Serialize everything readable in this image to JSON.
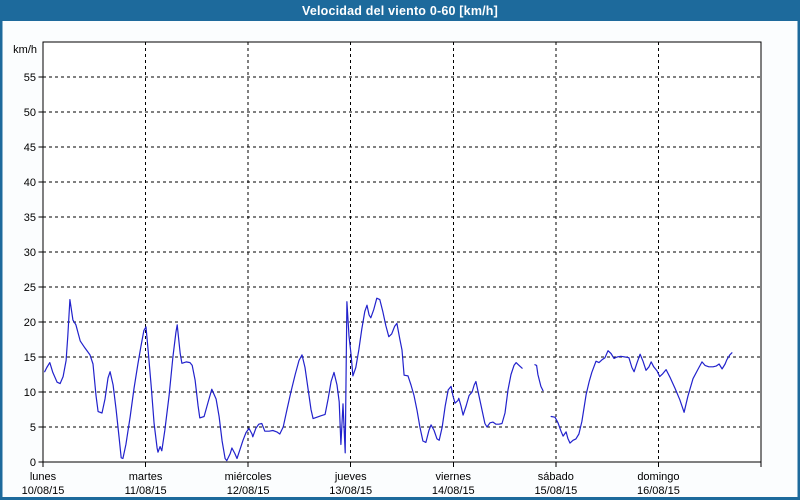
{
  "window": {
    "title": "Velocidad del viento 0-60 [km/h]"
  },
  "colors": {
    "titlebar_bg": "#1d6a9c",
    "titlebar_text": "#ffffff",
    "frame": "#1d6a9c",
    "page_bg": "#fbfdfe",
    "plot_bg": "#ffffff",
    "grid": "#000000",
    "axis": "#000000",
    "label": "#000000",
    "line": "#2222cc"
  },
  "chart_data": {
    "type": "line",
    "title": "Velocidad del viento 0-60 [km/h]",
    "ylabel": "km/h",
    "unit_label": "km/h",
    "ylim": [
      0,
      60
    ],
    "ytick_step": 5,
    "ytick_labels": [
      "0",
      "5",
      "10",
      "15",
      "20",
      "25",
      "30",
      "35",
      "40",
      "45",
      "50",
      "55"
    ],
    "x_range_hours": [
      0,
      168
    ],
    "grid": "dashed",
    "legend": "none",
    "days": [
      {
        "name": "lunes",
        "date": "10/08/15"
      },
      {
        "name": "martes",
        "date": "11/08/15"
      },
      {
        "name": "miércoles",
        "date": "12/08/15"
      },
      {
        "name": "jueves",
        "date": "13/08/15"
      },
      {
        "name": "viernes",
        "date": "14/08/15"
      },
      {
        "name": "sábado",
        "date": "15/08/15"
      },
      {
        "name": "domingo",
        "date": "16/08/15"
      }
    ],
    "series": [
      {
        "name": "velocidad del viento",
        "color": "#2222cc",
        "segments": [
          [
            [
              0.4,
              12.9
            ],
            [
              0.9,
              13.5
            ],
            [
              1.6,
              14.2
            ],
            [
              2.3,
              12.8
            ],
            [
              3.3,
              11.4
            ],
            [
              4.0,
              11.2
            ],
            [
              4.7,
              12.2
            ],
            [
              5.4,
              14.5
            ],
            [
              5.8,
              18.0
            ],
            [
              6.3,
              23.2
            ],
            [
              7.0,
              20.3
            ],
            [
              7.7,
              19.6
            ],
            [
              8.7,
              17.3
            ],
            [
              9.8,
              16.3
            ],
            [
              11.0,
              15.3
            ],
            [
              11.7,
              14.0
            ],
            [
              12.4,
              9.5
            ],
            [
              12.9,
              7.2
            ],
            [
              13.8,
              7.0
            ],
            [
              14.5,
              9.0
            ],
            [
              15.2,
              12.0
            ],
            [
              15.7,
              12.9
            ],
            [
              16.4,
              11.0
            ],
            [
              17.1,
              7.5
            ],
            [
              17.8,
              3.5
            ],
            [
              18.3,
              0.6
            ],
            [
              18.7,
              0.5
            ],
            [
              19.4,
              2.5
            ],
            [
              20.4,
              6.5
            ],
            [
              21.3,
              10.5
            ],
            [
              22.2,
              14.0
            ],
            [
              22.9,
              16.5
            ],
            [
              23.6,
              18.8
            ],
            [
              24.1,
              19.3
            ],
            [
              24.6,
              16.0
            ],
            [
              25.3,
              11.0
            ],
            [
              26.0,
              5.5
            ],
            [
              26.7,
              2.0
            ],
            [
              26.9,
              1.4
            ],
            [
              27.4,
              2.2
            ],
            [
              27.8,
              1.6
            ],
            [
              28.5,
              4.5
            ],
            [
              29.5,
              9.5
            ],
            [
              30.4,
              15.0
            ],
            [
              31.1,
              18.5
            ],
            [
              31.4,
              19.6
            ],
            [
              32.1,
              15.5
            ],
            [
              32.5,
              14.1
            ],
            [
              33.5,
              14.3
            ],
            [
              34.4,
              14.2
            ],
            [
              34.9,
              13.8
            ],
            [
              35.6,
              11.7
            ],
            [
              36.3,
              8.0
            ],
            [
              36.7,
              6.3
            ],
            [
              37.7,
              6.5
            ],
            [
              38.6,
              8.5
            ],
            [
              39.5,
              10.4
            ],
            [
              40.5,
              9.0
            ],
            [
              41.2,
              6.5
            ],
            [
              41.9,
              3.0
            ],
            [
              42.6,
              0.5
            ],
            [
              43.0,
              0.2
            ],
            [
              43.8,
              1.2
            ],
            [
              44.2,
              2.0
            ],
            [
              44.9,
              1.2
            ],
            [
              45.4,
              0.5
            ],
            [
              46.1,
              1.8
            ],
            [
              46.8,
              3.1
            ],
            [
              47.5,
              4.2
            ],
            [
              48.2,
              4.8
            ],
            [
              48.9,
              4.0
            ],
            [
              49.1,
              3.6
            ],
            [
              49.8,
              4.8
            ],
            [
              50.5,
              5.4
            ],
            [
              51.2,
              5.5
            ],
            [
              51.9,
              4.4
            ],
            [
              52.9,
              4.4
            ],
            [
              53.8,
              4.5
            ],
            [
              54.7,
              4.3
            ],
            [
              55.4,
              4.0
            ],
            [
              56.2,
              5.0
            ],
            [
              57.1,
              7.5
            ],
            [
              58.0,
              10.0
            ],
            [
              59.0,
              12.5
            ],
            [
              59.9,
              14.5
            ],
            [
              60.6,
              15.3
            ],
            [
              61.3,
              13.5
            ],
            [
              62.0,
              10.5
            ],
            [
              62.7,
              7.5
            ],
            [
              63.2,
              6.2
            ],
            [
              64.1,
              6.4
            ],
            [
              65.0,
              6.6
            ],
            [
              66.0,
              6.8
            ],
            [
              66.7,
              9.0
            ],
            [
              67.4,
              11.5
            ],
            [
              68.1,
              12.8
            ],
            [
              68.8,
              11.0
            ],
            [
              69.3,
              8.6
            ],
            [
              69.7,
              2.5
            ],
            [
              70.2,
              8.3
            ],
            [
              70.7,
              1.3
            ],
            [
              71.1,
              22.9
            ],
            [
              71.6,
              18.0
            ],
            [
              72.1,
              15.3
            ],
            [
              72.5,
              12.3
            ],
            [
              73.2,
              13.5
            ],
            [
              73.9,
              16.0
            ],
            [
              74.6,
              19.0
            ],
            [
              75.3,
              21.5
            ],
            [
              75.8,
              22.4
            ],
            [
              76.3,
              21.0
            ],
            [
              76.7,
              20.6
            ],
            [
              77.4,
              21.8
            ],
            [
              78.1,
              23.4
            ],
            [
              78.8,
              23.2
            ],
            [
              79.5,
              21.5
            ],
            [
              80.2,
              19.5
            ],
            [
              80.9,
              17.9
            ],
            [
              81.6,
              18.3
            ],
            [
              82.3,
              19.4
            ],
            [
              82.8,
              19.8
            ],
            [
              83.5,
              17.5
            ],
            [
              84.0,
              16.0
            ],
            [
              84.5,
              12.4
            ],
            [
              85.4,
              12.3
            ],
            [
              86.1,
              11.0
            ],
            [
              86.8,
              9.5
            ],
            [
              87.5,
              7.4
            ],
            [
              88.2,
              5.0
            ],
            [
              88.9,
              3.0
            ],
            [
              89.6,
              2.8
            ],
            [
              90.3,
              4.5
            ],
            [
              90.8,
              5.3
            ],
            [
              91.5,
              4.5
            ],
            [
              92.2,
              3.3
            ],
            [
              92.7,
              3.1
            ],
            [
              93.4,
              5.0
            ],
            [
              94.1,
              8.0
            ],
            [
              94.8,
              10.3
            ],
            [
              95.5,
              10.8
            ],
            [
              95.9,
              9.5
            ],
            [
              96.4,
              8.4
            ],
            [
              97.1,
              8.8
            ],
            [
              97.3,
              9.1
            ],
            [
              97.8,
              8.0
            ],
            [
              98.3,
              6.7
            ],
            [
              99.0,
              8.0
            ],
            [
              99.7,
              9.5
            ],
            [
              100.4,
              10.0
            ],
            [
              100.9,
              11.0
            ],
            [
              101.3,
              11.5
            ],
            [
              102.0,
              9.5
            ],
            [
              102.7,
              7.5
            ],
            [
              103.4,
              5.5
            ],
            [
              103.9,
              5.0
            ],
            [
              104.6,
              5.6
            ],
            [
              105.3,
              5.7
            ],
            [
              106.0,
              5.4
            ],
            [
              106.7,
              5.4
            ],
            [
              107.4,
              5.5
            ],
            [
              108.1,
              7.0
            ],
            [
              108.8,
              10.3
            ],
            [
              109.5,
              12.5
            ],
            [
              110.2,
              13.8
            ],
            [
              110.7,
              14.2
            ],
            [
              111.4,
              13.8
            ],
            [
              112.1,
              13.4
            ]
          ],
          [
            [
              115.1,
              13.9
            ],
            [
              115.5,
              13.8
            ],
            [
              115.8,
              12.5
            ],
            [
              116.5,
              10.8
            ],
            [
              117.0,
              10.2
            ]
          ],
          [
            [
              118.9,
              6.5
            ],
            [
              119.8,
              6.4
            ],
            [
              120.5,
              5.6
            ],
            [
              121.2,
              4.4
            ],
            [
              121.7,
              3.7
            ],
            [
              122.4,
              4.3
            ],
            [
              122.8,
              3.4
            ],
            [
              123.3,
              2.7
            ],
            [
              124.0,
              3.1
            ],
            [
              124.7,
              3.3
            ],
            [
              125.4,
              4.0
            ],
            [
              126.1,
              5.8
            ],
            [
              127.1,
              9.7
            ],
            [
              127.8,
              11.5
            ],
            [
              128.4,
              12.8
            ],
            [
              129.4,
              14.4
            ],
            [
              130.1,
              14.2
            ],
            [
              130.8,
              14.6
            ],
            [
              131.5,
              14.9
            ],
            [
              132.2,
              15.9
            ],
            [
              132.9,
              15.5
            ],
            [
              133.6,
              14.8
            ],
            [
              134.3,
              15.0
            ],
            [
              135.2,
              15.1
            ],
            [
              136.2,
              15.0
            ],
            [
              137.1,
              14.9
            ],
            [
              137.8,
              13.5
            ],
            [
              138.3,
              12.9
            ],
            [
              139.0,
              14.2
            ],
            [
              139.7,
              15.4
            ],
            [
              140.4,
              14.4
            ],
            [
              141.1,
              13.1
            ],
            [
              141.8,
              13.6
            ],
            [
              142.3,
              14.3
            ],
            [
              142.9,
              13.6
            ],
            [
              143.7,
              13.0
            ],
            [
              144.3,
              12.2
            ],
            [
              145.0,
              12.6
            ],
            [
              145.8,
              13.2
            ],
            [
              146.7,
              12.1
            ],
            [
              147.9,
              10.5
            ],
            [
              149.0,
              8.9
            ],
            [
              150.0,
              7.1
            ],
            [
              150.9,
              9.4
            ],
            [
              152.1,
              11.9
            ],
            [
              153.3,
              13.3
            ],
            [
              154.2,
              14.3
            ],
            [
              154.9,
              13.8
            ],
            [
              155.8,
              13.6
            ],
            [
              156.8,
              13.6
            ],
            [
              157.5,
              13.7
            ],
            [
              158.2,
              14.0
            ],
            [
              158.9,
              13.3
            ],
            [
              159.6,
              14.0
            ],
            [
              160.0,
              14.6
            ],
            [
              160.7,
              15.3
            ],
            [
              161.2,
              15.6
            ]
          ]
        ]
      }
    ]
  }
}
